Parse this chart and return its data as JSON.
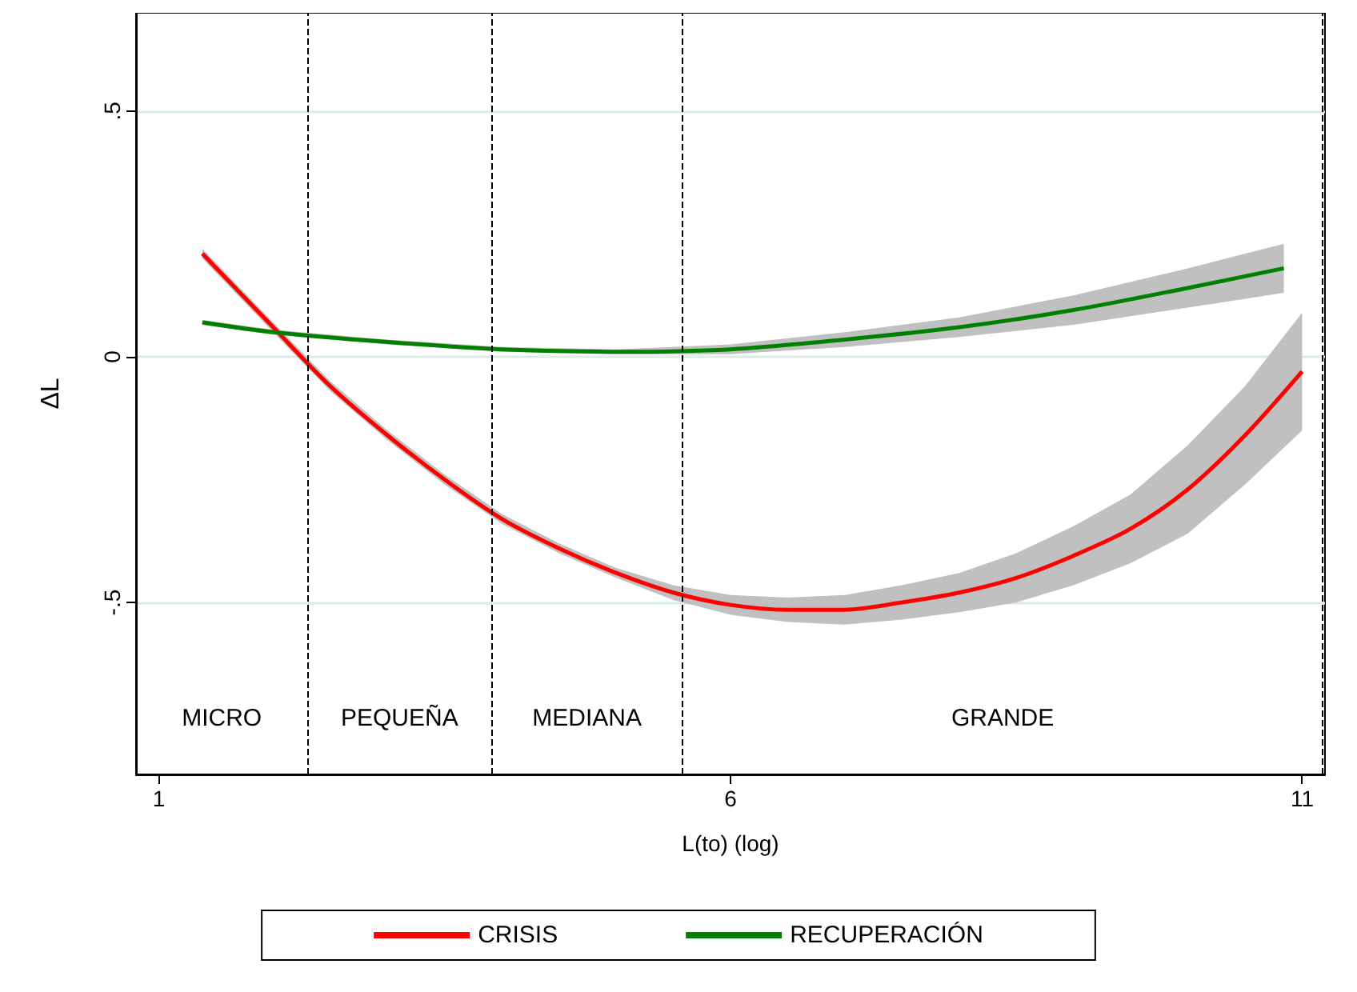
{
  "chart_data": {
    "type": "line",
    "xlabel": "L(to) (log)",
    "ylabel": "ΔL",
    "xlim": [
      0.8,
      11.2
    ],
    "ylim": [
      -0.85,
      0.7
    ],
    "xticks": [
      1,
      6,
      11
    ],
    "yticks": [
      {
        "value": -0.5,
        "label": "-.5"
      },
      0,
      {
        "value": 0.5,
        "label": ".5"
      }
    ],
    "grid": "y",
    "legend": "bottom",
    "line_style": "solid",
    "marker": "none",
    "series": [
      {
        "name": "CRISIS",
        "color": "#ff0000",
        "x": [
          1.38,
          2,
          2.5,
          3,
          3.5,
          4,
          4.5,
          5,
          5.5,
          6,
          6.5,
          7,
          7.5,
          8,
          8.5,
          9,
          9.5,
          10,
          10.5,
          11
        ],
        "values": [
          0.21,
          0.06,
          -0.06,
          -0.16,
          -0.25,
          -0.33,
          -0.39,
          -0.44,
          -0.48,
          -0.505,
          -0.515,
          -0.515,
          -0.5,
          -0.48,
          -0.45,
          -0.405,
          -0.35,
          -0.27,
          -0.16,
          -0.03
        ],
        "lower": [
          0.2,
          0.05,
          -0.07,
          -0.17,
          -0.26,
          -0.34,
          -0.4,
          -0.45,
          -0.495,
          -0.525,
          -0.54,
          -0.545,
          -0.535,
          -0.52,
          -0.5,
          -0.465,
          -0.42,
          -0.36,
          -0.26,
          -0.15
        ],
        "upper": [
          0.22,
          0.07,
          -0.05,
          -0.15,
          -0.24,
          -0.32,
          -0.38,
          -0.43,
          -0.465,
          -0.485,
          -0.49,
          -0.485,
          -0.465,
          -0.44,
          -0.4,
          -0.345,
          -0.28,
          -0.18,
          -0.06,
          0.09
        ]
      },
      {
        "name": "RECUPERACIÓN",
        "color": "#008000",
        "x": [
          1.38,
          2,
          3,
          4,
          5,
          6,
          7,
          8,
          9,
          10,
          10.84
        ],
        "values": [
          0.07,
          0.05,
          0.03,
          0.015,
          0.01,
          0.015,
          0.035,
          0.06,
          0.095,
          0.14,
          0.18
        ],
        "lower": [
          0.065,
          0.045,
          0.025,
          0.01,
          0.005,
          0.005,
          0.02,
          0.04,
          0.065,
          0.1,
          0.13
        ],
        "upper": [
          0.075,
          0.055,
          0.035,
          0.02,
          0.015,
          0.025,
          0.05,
          0.08,
          0.125,
          0.18,
          0.23
        ]
      }
    ],
    "ref_lines": [
      {
        "axis": "x",
        "value": 2.3,
        "color": "#000000",
        "line_style": "dashed"
      },
      {
        "axis": "x",
        "value": 3.91,
        "color": "#000000",
        "line_style": "dashed"
      },
      {
        "axis": "x",
        "value": 5.58,
        "color": "#000000",
        "line_style": "dashed"
      },
      {
        "axis": "x",
        "value": 11.18,
        "color": "#000000",
        "line_style": "dashed"
      }
    ],
    "annotations": [
      "MICRO",
      "PEQUEÑA",
      "MEDIANA",
      "GRANDE"
    ]
  }
}
